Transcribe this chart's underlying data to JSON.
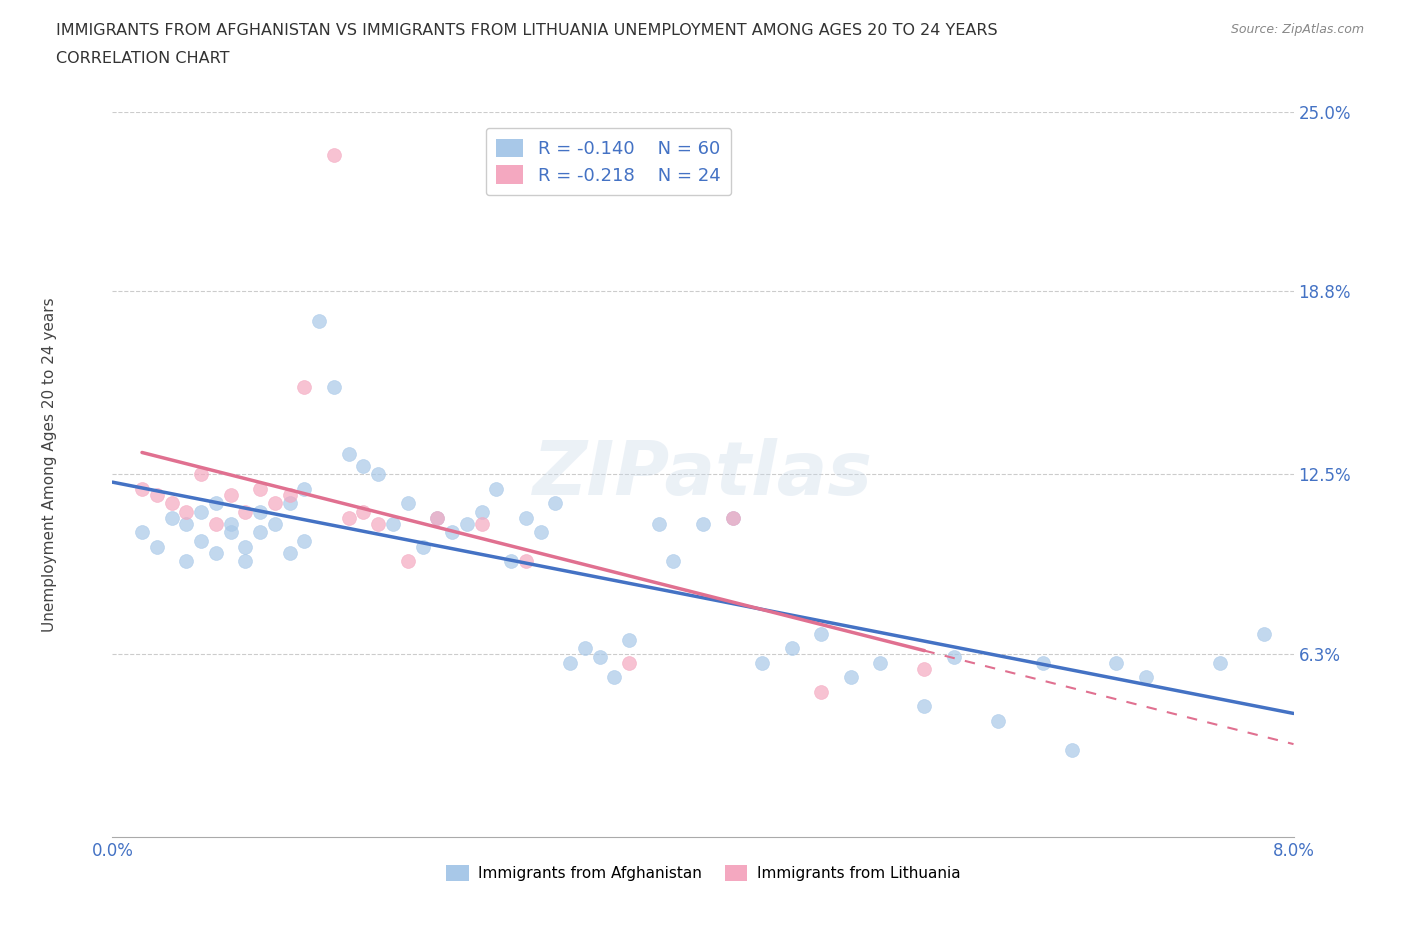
{
  "title_line1": "IMMIGRANTS FROM AFGHANISTAN VS IMMIGRANTS FROM LITHUANIA UNEMPLOYMENT AMONG AGES 20 TO 24 YEARS",
  "title_line2": "CORRELATION CHART",
  "source": "Source: ZipAtlas.com",
  "ylabel": "Unemployment Among Ages 20 to 24 years",
  "xlim": [
    0.0,
    0.08
  ],
  "ylim": [
    0.0,
    0.25
  ],
  "ytick_positions": [
    0.063,
    0.125,
    0.188,
    0.25
  ],
  "ytick_labels": [
    "6.3%",
    "12.5%",
    "18.8%",
    "25.0%"
  ],
  "legend_r1": "R = -0.140",
  "legend_n1": "N = 60",
  "legend_r2": "R = -0.218",
  "legend_n2": "N = 24",
  "label1": "Immigrants from Afghanistan",
  "label2": "Immigrants from Lithuania",
  "color1": "#A8C8E8",
  "color2": "#F4A8C0",
  "trendline1_color": "#4472C4",
  "trendline2_color": "#E07090",
  "afghanistan_x": [
    0.002,
    0.003,
    0.004,
    0.005,
    0.005,
    0.006,
    0.006,
    0.007,
    0.007,
    0.008,
    0.008,
    0.009,
    0.009,
    0.01,
    0.01,
    0.011,
    0.012,
    0.012,
    0.013,
    0.013,
    0.014,
    0.015,
    0.016,
    0.017,
    0.018,
    0.019,
    0.02,
    0.021,
    0.022,
    0.023,
    0.024,
    0.025,
    0.026,
    0.027,
    0.028,
    0.029,
    0.03,
    0.031,
    0.032,
    0.033,
    0.034,
    0.035,
    0.037,
    0.038,
    0.04,
    0.042,
    0.044,
    0.046,
    0.048,
    0.05,
    0.052,
    0.055,
    0.057,
    0.06,
    0.063,
    0.065,
    0.068,
    0.07,
    0.075,
    0.078
  ],
  "afghanistan_y": [
    0.105,
    0.1,
    0.11,
    0.095,
    0.108,
    0.102,
    0.112,
    0.098,
    0.115,
    0.105,
    0.108,
    0.1,
    0.095,
    0.112,
    0.105,
    0.108,
    0.115,
    0.098,
    0.102,
    0.12,
    0.178,
    0.155,
    0.132,
    0.128,
    0.125,
    0.108,
    0.115,
    0.1,
    0.11,
    0.105,
    0.108,
    0.112,
    0.12,
    0.095,
    0.11,
    0.105,
    0.115,
    0.06,
    0.065,
    0.062,
    0.055,
    0.068,
    0.108,
    0.095,
    0.108,
    0.11,
    0.06,
    0.065,
    0.07,
    0.055,
    0.06,
    0.045,
    0.062,
    0.04,
    0.06,
    0.03,
    0.06,
    0.055,
    0.06,
    0.07
  ],
  "lithuania_x": [
    0.002,
    0.003,
    0.004,
    0.005,
    0.006,
    0.007,
    0.008,
    0.009,
    0.01,
    0.011,
    0.012,
    0.013,
    0.015,
    0.016,
    0.017,
    0.018,
    0.02,
    0.022,
    0.025,
    0.028,
    0.035,
    0.042,
    0.048,
    0.055
  ],
  "lithuania_y": [
    0.12,
    0.118,
    0.115,
    0.112,
    0.125,
    0.108,
    0.118,
    0.112,
    0.12,
    0.115,
    0.118,
    0.155,
    0.235,
    0.11,
    0.112,
    0.108,
    0.095,
    0.11,
    0.108,
    0.095,
    0.06,
    0.11,
    0.05,
    0.058
  ]
}
